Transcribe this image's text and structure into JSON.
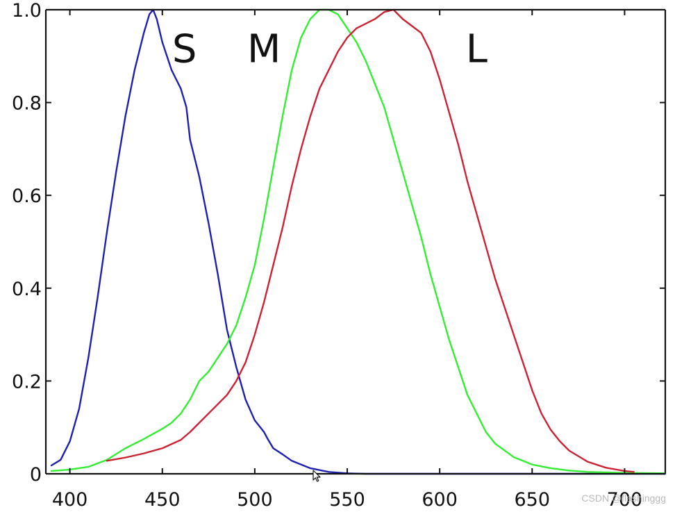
{
  "chart_data": {
    "type": "line",
    "xlim": [
      387,
      722
    ],
    "ylim": [
      0,
      1.0
    ],
    "x_ticks": [
      400,
      450,
      500,
      550,
      600,
      650,
      700
    ],
    "y_ticks": [
      0,
      0.2,
      0.4,
      0.6,
      0.8,
      1.0
    ],
    "x_tick_labels": [
      "400",
      "450",
      "500",
      "550",
      "600",
      "650",
      "700"
    ],
    "y_tick_labels": [
      "0",
      "0.2",
      "0.4",
      "0.6",
      "0.8",
      "1.0"
    ],
    "grid": false,
    "series": [
      {
        "label": "S",
        "color": "#1f1fb0",
        "points": [
          [
            390,
            0.018
          ],
          [
            395,
            0.03
          ],
          [
            400,
            0.07
          ],
          [
            405,
            0.14
          ],
          [
            410,
            0.25
          ],
          [
            415,
            0.38
          ],
          [
            420,
            0.52
          ],
          [
            425,
            0.65
          ],
          [
            430,
            0.77
          ],
          [
            435,
            0.87
          ],
          [
            440,
            0.95
          ],
          [
            443,
            0.99
          ],
          [
            445,
            1.0
          ],
          [
            447,
            0.98
          ],
          [
            450,
            0.93
          ],
          [
            455,
            0.87
          ],
          [
            460,
            0.83
          ],
          [
            463,
            0.79
          ],
          [
            465,
            0.72
          ],
          [
            470,
            0.64
          ],
          [
            475,
            0.54
          ],
          [
            480,
            0.43
          ],
          [
            485,
            0.31
          ],
          [
            490,
            0.23
          ],
          [
            495,
            0.16
          ],
          [
            500,
            0.115
          ],
          [
            505,
            0.09
          ],
          [
            507,
            0.075
          ],
          [
            510,
            0.055
          ],
          [
            515,
            0.042
          ],
          [
            520,
            0.028
          ],
          [
            530,
            0.012
          ],
          [
            540,
            0.004
          ],
          [
            550,
            0.001
          ],
          [
            560,
            0.0
          ],
          [
            722,
            0.0
          ]
        ]
      },
      {
        "label": "M",
        "color": "#33ee33",
        "points": [
          [
            390,
            0.006
          ],
          [
            400,
            0.009
          ],
          [
            410,
            0.015
          ],
          [
            420,
            0.03
          ],
          [
            430,
            0.055
          ],
          [
            440,
            0.075
          ],
          [
            450,
            0.097
          ],
          [
            455,
            0.11
          ],
          [
            460,
            0.13
          ],
          [
            465,
            0.16
          ],
          [
            470,
            0.2
          ],
          [
            475,
            0.22
          ],
          [
            480,
            0.25
          ],
          [
            485,
            0.28
          ],
          [
            490,
            0.32
          ],
          [
            495,
            0.38
          ],
          [
            500,
            0.45
          ],
          [
            505,
            0.55
          ],
          [
            510,
            0.66
          ],
          [
            515,
            0.77
          ],
          [
            520,
            0.87
          ],
          [
            525,
            0.94
          ],
          [
            530,
            0.98
          ],
          [
            535,
            1.0
          ],
          [
            540,
            1.0
          ],
          [
            545,
            0.99
          ],
          [
            550,
            0.96
          ],
          [
            555,
            0.93
          ],
          [
            560,
            0.89
          ],
          [
            565,
            0.84
          ],
          [
            570,
            0.79
          ],
          [
            575,
            0.72
          ],
          [
            580,
            0.65
          ],
          [
            585,
            0.58
          ],
          [
            590,
            0.51
          ],
          [
            595,
            0.43
          ],
          [
            600,
            0.36
          ],
          [
            605,
            0.29
          ],
          [
            610,
            0.23
          ],
          [
            615,
            0.17
          ],
          [
            620,
            0.13
          ],
          [
            625,
            0.09
          ],
          [
            630,
            0.065
          ],
          [
            640,
            0.036
          ],
          [
            650,
            0.02
          ],
          [
            660,
            0.012
          ],
          [
            670,
            0.007
          ],
          [
            680,
            0.004
          ],
          [
            700,
            0.002
          ],
          [
            722,
            0.001
          ]
        ]
      },
      {
        "label": "L",
        "color": "#cc2233",
        "points": [
          [
            420,
            0.028
          ],
          [
            430,
            0.035
          ],
          [
            440,
            0.044
          ],
          [
            450,
            0.055
          ],
          [
            460,
            0.073
          ],
          [
            465,
            0.09
          ],
          [
            470,
            0.11
          ],
          [
            475,
            0.13
          ],
          [
            480,
            0.15
          ],
          [
            485,
            0.17
          ],
          [
            490,
            0.2
          ],
          [
            495,
            0.24
          ],
          [
            500,
            0.3
          ],
          [
            505,
            0.37
          ],
          [
            510,
            0.45
          ],
          [
            515,
            0.53
          ],
          [
            520,
            0.62
          ],
          [
            525,
            0.7
          ],
          [
            530,
            0.77
          ],
          [
            535,
            0.83
          ],
          [
            540,
            0.87
          ],
          [
            545,
            0.91
          ],
          [
            550,
            0.94
          ],
          [
            555,
            0.96
          ],
          [
            560,
            0.97
          ],
          [
            565,
            0.98
          ],
          [
            570,
            0.995
          ],
          [
            575,
            1.0
          ],
          [
            580,
            0.98
          ],
          [
            585,
            0.965
          ],
          [
            590,
            0.95
          ],
          [
            595,
            0.91
          ],
          [
            600,
            0.85
          ],
          [
            605,
            0.78
          ],
          [
            610,
            0.71
          ],
          [
            615,
            0.63
          ],
          [
            620,
            0.56
          ],
          [
            625,
            0.49
          ],
          [
            630,
            0.42
          ],
          [
            635,
            0.36
          ],
          [
            640,
            0.3
          ],
          [
            645,
            0.24
          ],
          [
            650,
            0.18
          ],
          [
            655,
            0.13
          ],
          [
            660,
            0.095
          ],
          [
            665,
            0.07
          ],
          [
            670,
            0.05
          ],
          [
            680,
            0.026
          ],
          [
            690,
            0.013
          ],
          [
            700,
            0.006
          ],
          [
            705,
            0.004
          ]
        ]
      }
    ],
    "annotations": [
      {
        "text": "S",
        "x": 462,
        "y": 0.92
      },
      {
        "text": "M",
        "x": 505,
        "y": 0.92
      },
      {
        "text": "L",
        "x": 620,
        "y": 0.92
      }
    ]
  },
  "watermark": "CSDN @flashinggg"
}
